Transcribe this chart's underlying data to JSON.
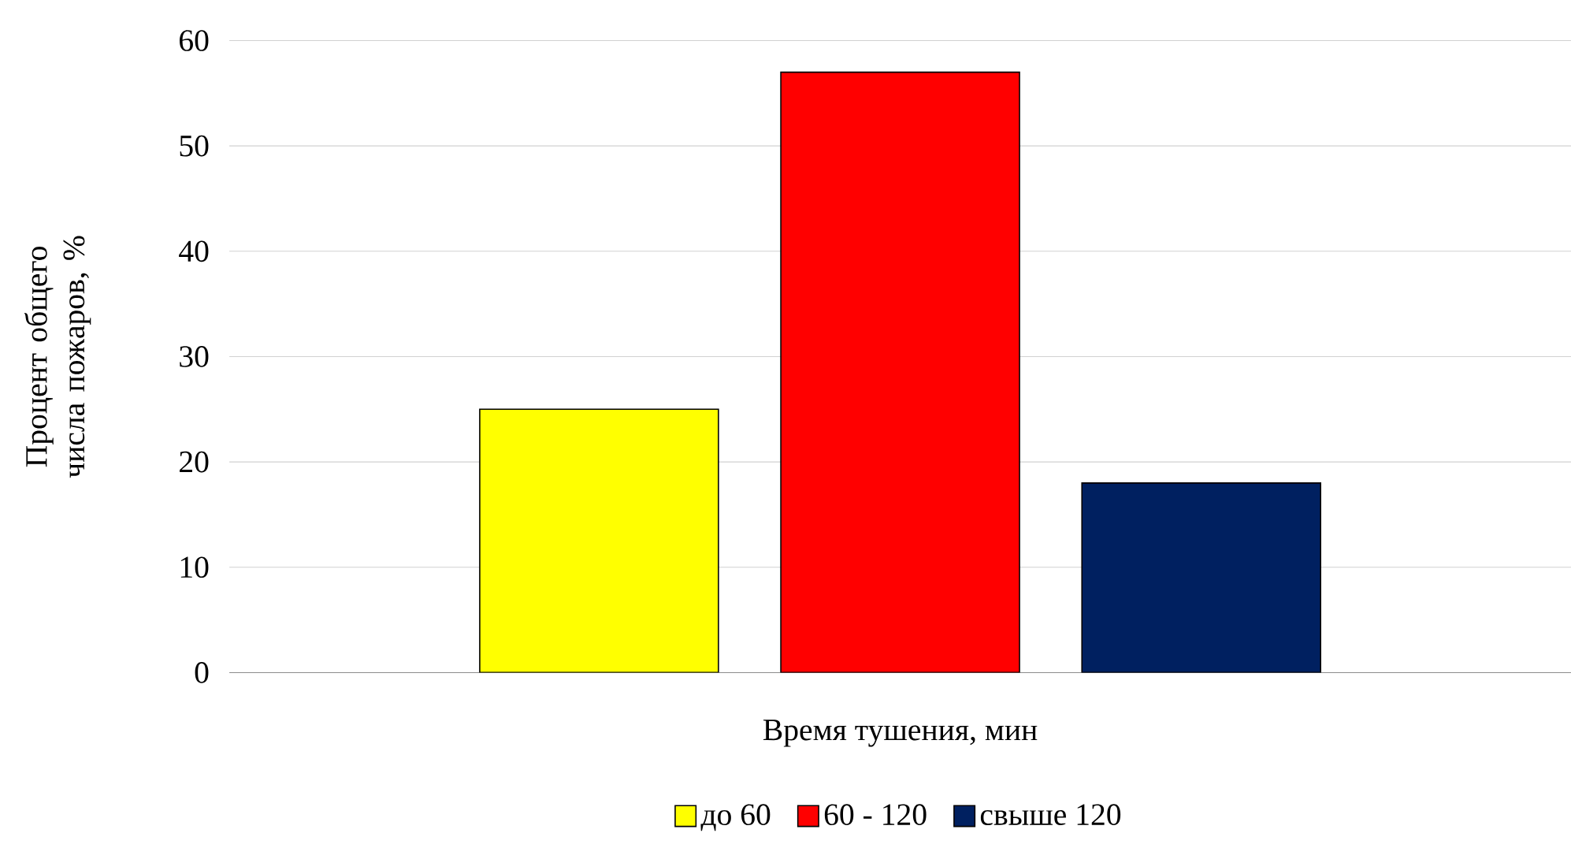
{
  "chart_data": {
    "type": "bar",
    "categories": [
      null
    ],
    "series": [
      {
        "name": "до 60",
        "color": "#ffff00",
        "values": [
          25
        ]
      },
      {
        "name": "60 - 120",
        "color": "#ff0000",
        "values": [
          57
        ]
      },
      {
        "name": "свыше 120",
        "color": "#002060",
        "values": [
          18
        ]
      }
    ],
    "xlabel": "Время тушения, мин",
    "ylabel": "Процент общего числа пожаров, %",
    "ylim": [
      0,
      60
    ],
    "yticks": [
      0,
      10,
      20,
      30,
      40,
      50,
      60
    ],
    "grid": "y",
    "legend": "bottom"
  }
}
